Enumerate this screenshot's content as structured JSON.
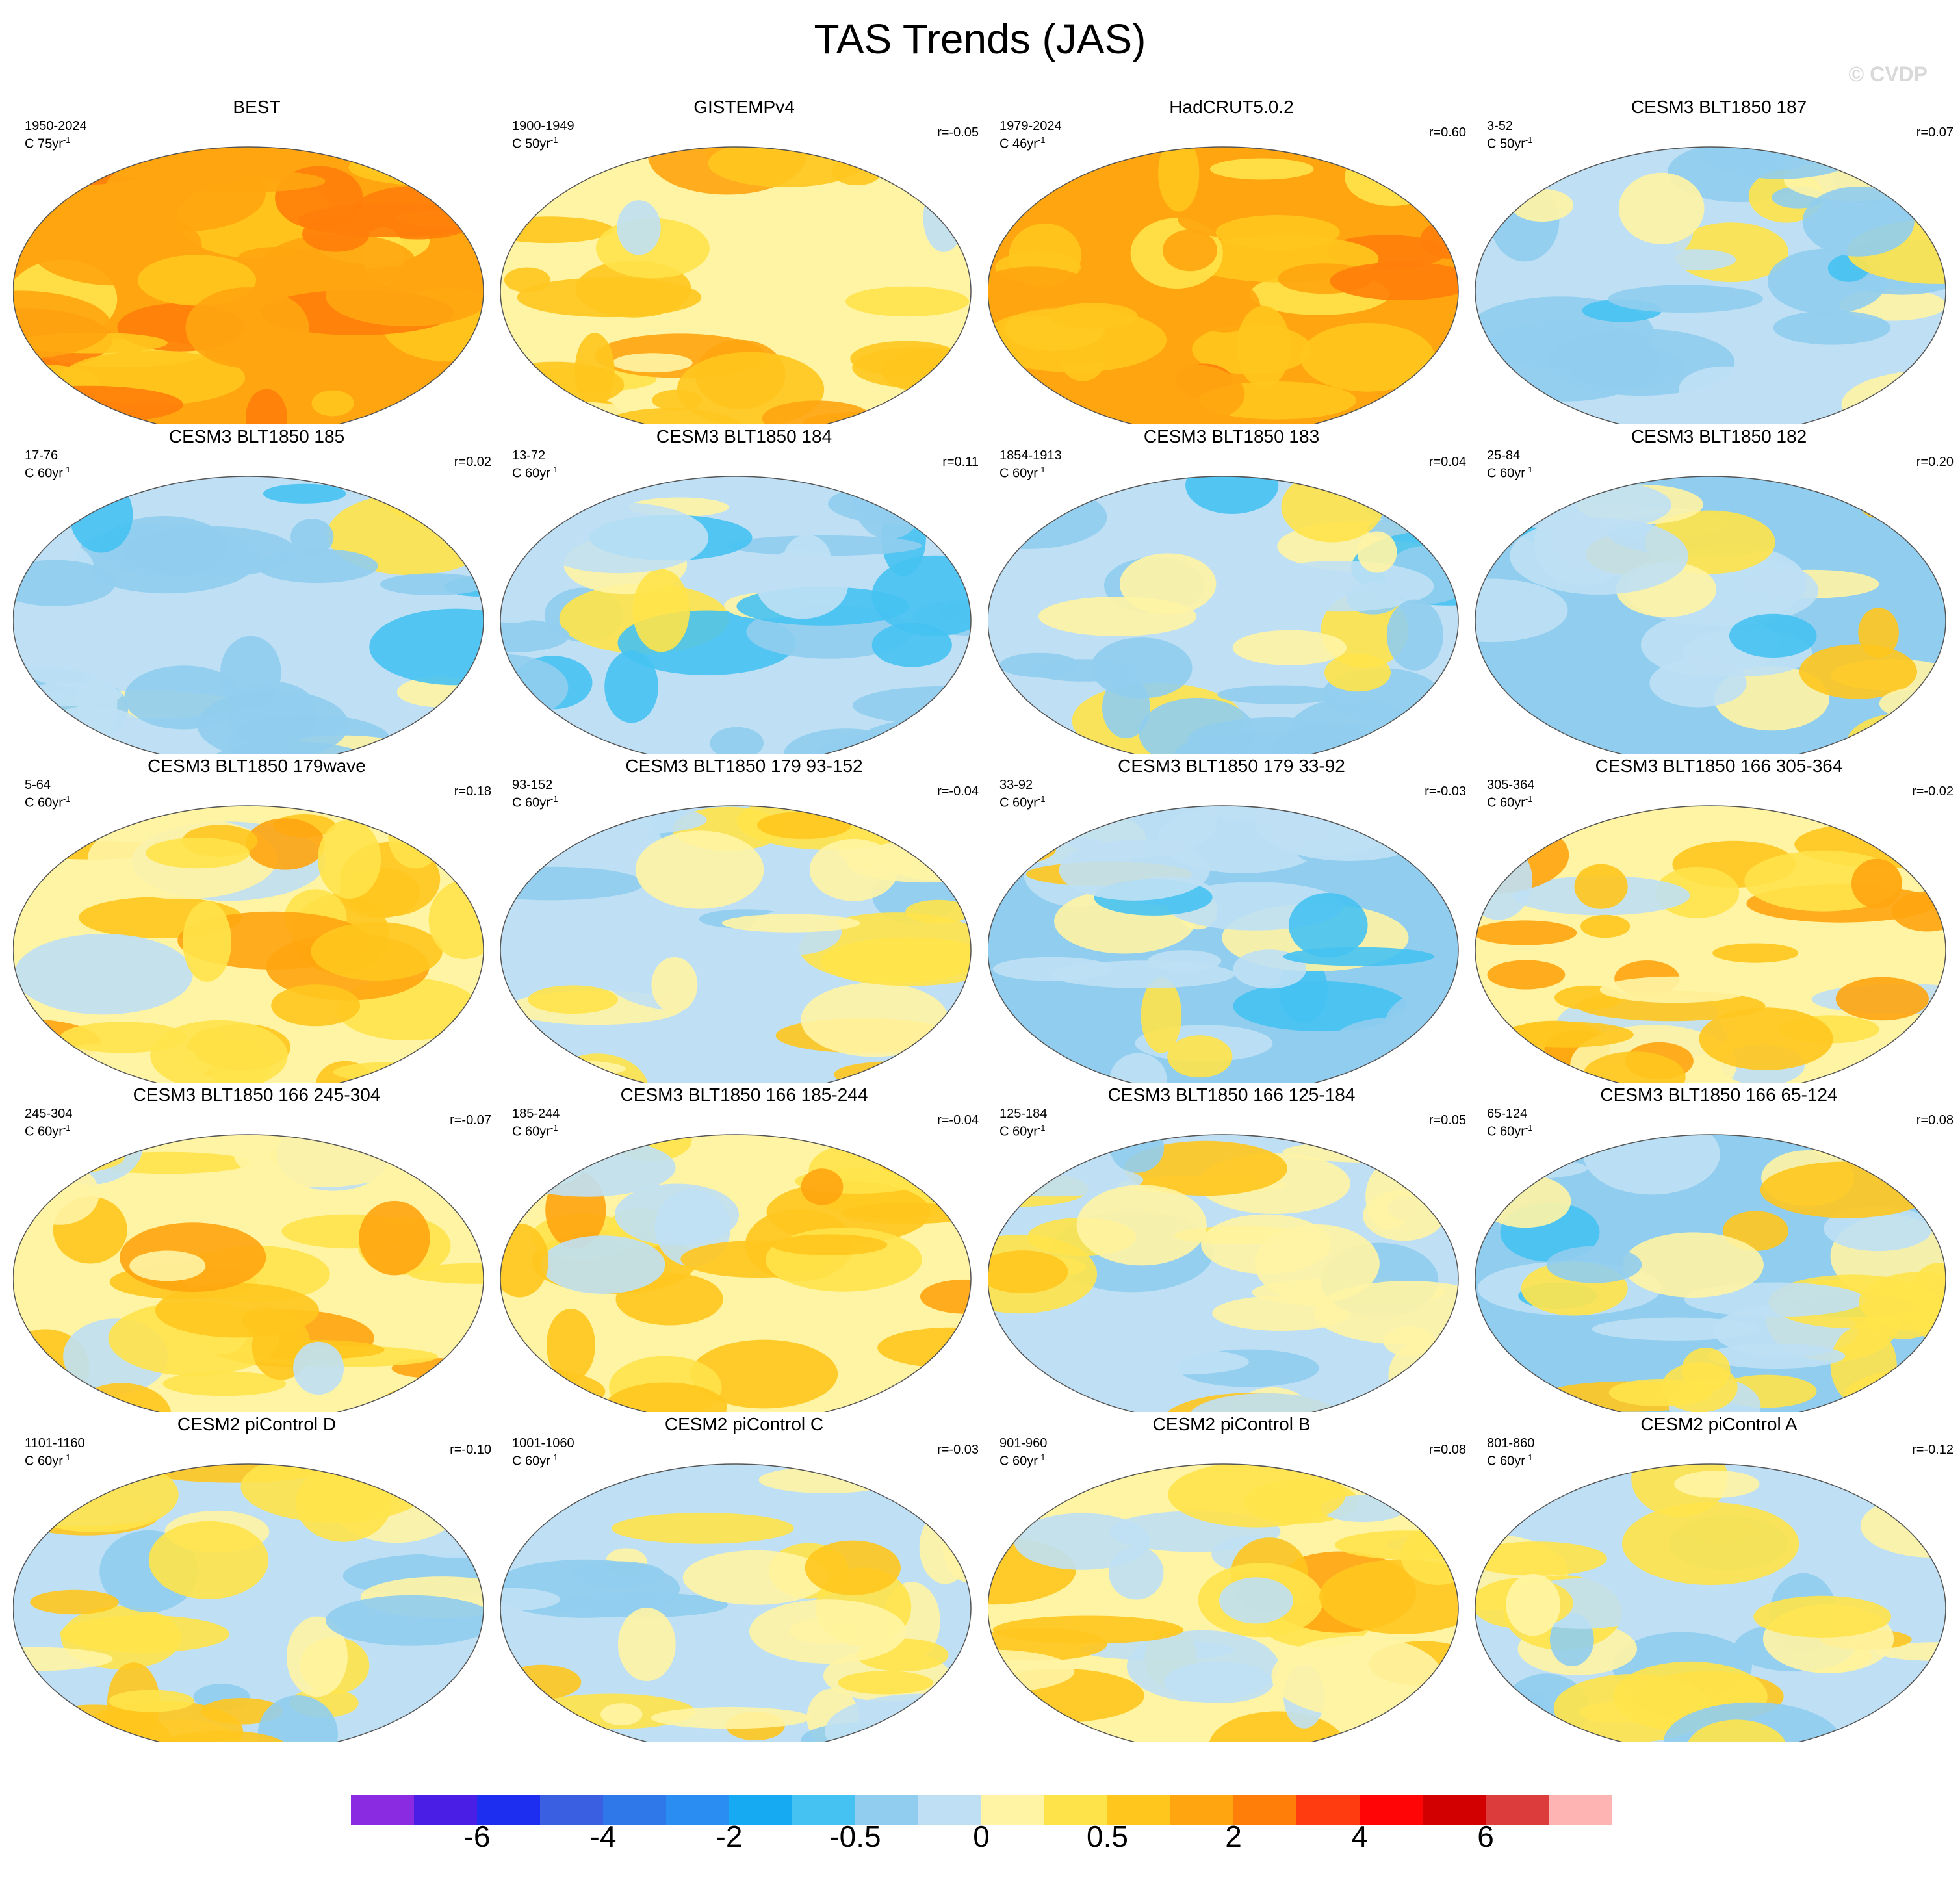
{
  "title": "TAS Trends (JAS)",
  "watermark": "© CVDP",
  "panels": [
    {
      "title": "BEST",
      "years": "1950-2024",
      "scale": "C 75yr",
      "r": "",
      "pattern": "warm",
      "seed": 3
    },
    {
      "title": "GISTEMPv4",
      "years": "1900-1949",
      "scale": "C 50yr",
      "r": "r=-0.05",
      "pattern": "mixed-warm",
      "seed": 7
    },
    {
      "title": "HadCRUT5.0.2",
      "years": "1979-2024",
      "scale": "C 46yr",
      "r": "r=0.60",
      "pattern": "warm",
      "seed": 11
    },
    {
      "title": "CESM3 BLT1850 187",
      "years": "3-52",
      "scale": "C 50yr",
      "r": "r=0.07",
      "pattern": "cool",
      "seed": 13
    },
    {
      "title": "CESM3 BLT1850 185",
      "years": "17-76",
      "scale": "C 60yr",
      "r": "r=0.02",
      "pattern": "cool",
      "seed": 17
    },
    {
      "title": "CESM3 BLT1850 184",
      "years": "13-72",
      "scale": "C 60yr",
      "r": "r=0.11",
      "pattern": "cool",
      "seed": 19
    },
    {
      "title": "CESM3 BLT1850 183",
      "years": "1854-1913",
      "scale": "C 60yr",
      "r": "r=0.04",
      "pattern": "cool",
      "seed": 23
    },
    {
      "title": "CESM3 BLT1850 182",
      "years": "25-84",
      "scale": "C 60yr",
      "r": "r=0.20",
      "pattern": "mixed-cool",
      "seed": 29
    },
    {
      "title": "CESM3 BLT1850 179wave",
      "years": "5-64",
      "scale": "C 60yr",
      "r": "r=0.18",
      "pattern": "mixed-warm",
      "seed": 31
    },
    {
      "title": "CESM3 BLT1850 179 93-152",
      "years": "93-152",
      "scale": "C 60yr",
      "r": "r=-0.04",
      "pattern": "mixed",
      "seed": 37
    },
    {
      "title": "CESM3 BLT1850 179 33-92",
      "years": "33-92",
      "scale": "C 60yr",
      "r": "r=-0.03",
      "pattern": "mixed-cool",
      "seed": 41
    },
    {
      "title": "CESM3 BLT1850 166 305-364",
      "years": "305-364",
      "scale": "C 60yr",
      "r": "r=-0.02",
      "pattern": "mixed-warm",
      "seed": 43
    },
    {
      "title": "CESM3 BLT1850 166 245-304",
      "years": "245-304",
      "scale": "C 60yr",
      "r": "r=-0.07",
      "pattern": "mixed-warm",
      "seed": 47
    },
    {
      "title": "CESM3 BLT1850 166 185-244",
      "years": "185-244",
      "scale": "C 60yr",
      "r": "r=-0.04",
      "pattern": "mixed-warm",
      "seed": 53
    },
    {
      "title": "CESM3 BLT1850 166 125-184",
      "years": "125-184",
      "scale": "C 60yr",
      "r": "r=0.05",
      "pattern": "mixed",
      "seed": 59
    },
    {
      "title": "CESM3 BLT1850 166 65-124",
      "years": "65-124",
      "scale": "C 60yr",
      "r": "r=0.08",
      "pattern": "mixed-cool",
      "seed": 61
    },
    {
      "title": "CESM2 piControl D",
      "years": "1101-1160",
      "scale": "C 60yr",
      "r": "r=-0.10",
      "pattern": "mixed",
      "seed": 67
    },
    {
      "title": "CESM2 piControl C",
      "years": "1001-1060",
      "scale": "C 60yr",
      "r": "r=-0.03",
      "pattern": "mixed",
      "seed": 71
    },
    {
      "title": "CESM2 piControl B",
      "years": "901-960",
      "scale": "C 60yr",
      "r": "r=0.08",
      "pattern": "mixed-warm",
      "seed": 73
    },
    {
      "title": "CESM2 piControl A",
      "years": "801-860",
      "scale": "C 60yr",
      "r": "r=-0.12",
      "pattern": "mixed",
      "seed": 79
    }
  ],
  "colorbar": {
    "colors": [
      "#8a2be2",
      "#4b1ee6",
      "#1e2ef0",
      "#3a5fe0",
      "#2f78ea",
      "#2a8df2",
      "#16aaf2",
      "#46c2f2",
      "#90cdee",
      "#bfe0f4",
      "#fff4a4",
      "#ffe34a",
      "#ffc61e",
      "#ffa50f",
      "#ff7e0a",
      "#ff3c0f",
      "#ff0505",
      "#d20000",
      "#dc3c3c",
      "#ffb4b4"
    ],
    "labels": [
      "-6",
      "-4",
      "-2",
      "-0.5",
      "0",
      "0.5",
      "2",
      "4",
      "6"
    ]
  }
}
